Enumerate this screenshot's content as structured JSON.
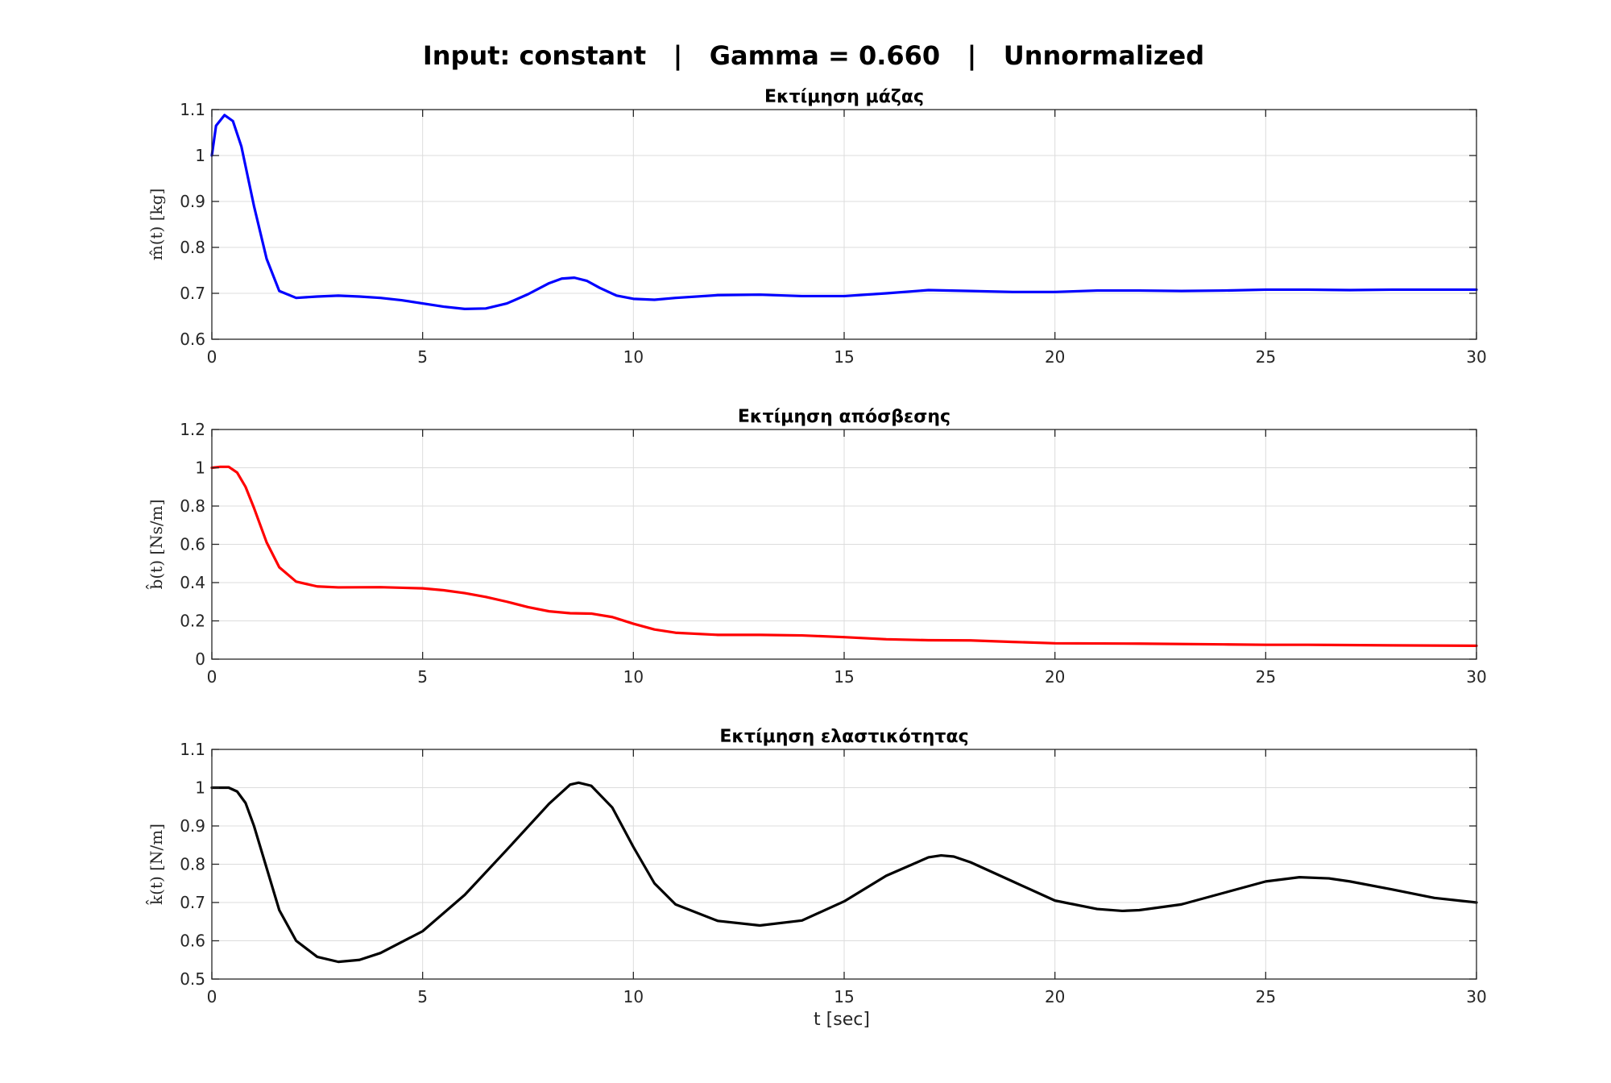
{
  "figure": {
    "suptitle": "Input: constant   |   Gamma = 0.660   |   Unnormalized",
    "xlabel": "t [sec]"
  },
  "chart_data": [
    {
      "type": "line",
      "title": "Εκτίμηση μάζας",
      "ylabel": "m̂(t)  [kg]",
      "xlim": [
        0,
        30
      ],
      "ylim": [
        0.6,
        1.1
      ],
      "xticks": [
        0,
        5,
        10,
        15,
        20,
        25,
        30
      ],
      "xtick_labels": [
        "0",
        "5",
        "10",
        "15",
        "20",
        "25",
        "30"
      ],
      "yticks": [
        0.6,
        0.7,
        0.8,
        0.9,
        1.0,
        1.1
      ],
      "ytick_labels": [
        "0.6",
        "0.7",
        "0.8",
        "0.9",
        "1",
        "1.1"
      ],
      "grid": true,
      "series": [
        {
          "color": "#0000ff",
          "x": [
            0,
            0.1,
            0.3,
            0.5,
            0.7,
            1.0,
            1.3,
            1.6,
            2.0,
            2.5,
            3.0,
            3.5,
            4.0,
            4.5,
            5.0,
            5.5,
            6.0,
            6.5,
            7.0,
            7.5,
            8.0,
            8.3,
            8.6,
            8.9,
            9.2,
            9.6,
            10.0,
            10.5,
            11.0,
            12.0,
            13.0,
            14.0,
            15.0,
            16.0,
            17.0,
            18.0,
            19.0,
            20.0,
            21.0,
            22.0,
            23.0,
            24.0,
            25.0,
            26.0,
            27.0,
            28.0,
            29.0,
            30.0
          ],
          "y": [
            1.0,
            1.065,
            1.088,
            1.075,
            1.02,
            0.89,
            0.775,
            0.705,
            0.69,
            0.693,
            0.695,
            0.693,
            0.69,
            0.685,
            0.678,
            0.671,
            0.666,
            0.667,
            0.678,
            0.698,
            0.722,
            0.732,
            0.734,
            0.727,
            0.712,
            0.695,
            0.688,
            0.686,
            0.69,
            0.696,
            0.697,
            0.694,
            0.694,
            0.7,
            0.707,
            0.705,
            0.703,
            0.703,
            0.706,
            0.706,
            0.705,
            0.706,
            0.708,
            0.708,
            0.707,
            0.708,
            0.708,
            0.708
          ]
        }
      ]
    },
    {
      "type": "line",
      "title": "Εκτίμηση απόσβεσης",
      "ylabel": "b̂(t)  [Ns/m]",
      "xlim": [
        0,
        30
      ],
      "ylim": [
        0,
        1.2
      ],
      "xticks": [
        0,
        5,
        10,
        15,
        20,
        25,
        30
      ],
      "xtick_labels": [
        "0",
        "5",
        "10",
        "15",
        "20",
        "25",
        "30"
      ],
      "yticks": [
        0,
        0.2,
        0.4,
        0.6,
        0.8,
        1.0,
        1.2
      ],
      "ytick_labels": [
        "0",
        "0.2",
        "0.4",
        "0.6",
        "0.8",
        "1",
        "1.2"
      ],
      "grid": true,
      "series": [
        {
          "color": "#ff0000",
          "x": [
            0,
            0.2,
            0.4,
            0.6,
            0.8,
            1.0,
            1.3,
            1.6,
            2.0,
            2.5,
            3.0,
            4.0,
            5.0,
            5.5,
            6.0,
            6.5,
            7.0,
            7.5,
            8.0,
            8.5,
            9.0,
            9.5,
            10.0,
            10.5,
            11.0,
            12.0,
            13.0,
            14.0,
            15.0,
            16.0,
            17.0,
            18.0,
            19.0,
            20.0,
            22.0,
            24.0,
            25.0,
            26.0,
            28.0,
            30.0
          ],
          "y": [
            1.0,
            1.005,
            1.005,
            0.975,
            0.9,
            0.79,
            0.61,
            0.48,
            0.405,
            0.38,
            0.375,
            0.376,
            0.37,
            0.36,
            0.345,
            0.325,
            0.3,
            0.272,
            0.25,
            0.24,
            0.238,
            0.22,
            0.185,
            0.155,
            0.138,
            0.127,
            0.127,
            0.124,
            0.115,
            0.104,
            0.099,
            0.098,
            0.09,
            0.083,
            0.081,
            0.077,
            0.075,
            0.075,
            0.072,
            0.07
          ]
        }
      ]
    },
    {
      "type": "line",
      "title": "Εκτίμηση ελαστικότητας",
      "ylabel": "k̂(t)  [N/m]",
      "xlim": [
        0,
        30
      ],
      "ylim": [
        0.5,
        1.1
      ],
      "xticks": [
        0,
        5,
        10,
        15,
        20,
        25,
        30
      ],
      "xtick_labels": [
        "0",
        "5",
        "10",
        "15",
        "20",
        "25",
        "30"
      ],
      "yticks": [
        0.5,
        0.6,
        0.7,
        0.8,
        0.9,
        1.0,
        1.1
      ],
      "ytick_labels": [
        "0.5",
        "0.6",
        "0.7",
        "0.8",
        "0.9",
        "1",
        "1.1"
      ],
      "grid": true,
      "series": [
        {
          "color": "#000000",
          "x": [
            0,
            0.2,
            0.4,
            0.6,
            0.8,
            1.0,
            1.3,
            1.6,
            2.0,
            2.5,
            3.0,
            3.5,
            4.0,
            5.0,
            6.0,
            7.0,
            8.0,
            8.5,
            8.7,
            9.0,
            9.5,
            10.0,
            10.5,
            11.0,
            12.0,
            13.0,
            14.0,
            15.0,
            16.0,
            17.0,
            17.3,
            17.6,
            18.0,
            19.0,
            20.0,
            21.0,
            21.6,
            22.0,
            23.0,
            24.0,
            25.0,
            25.8,
            26.5,
            27.0,
            28.0,
            29.0,
            30.0
          ],
          "y": [
            1.0,
            1.0,
            1.0,
            0.99,
            0.96,
            0.9,
            0.79,
            0.68,
            0.6,
            0.558,
            0.545,
            0.55,
            0.568,
            0.625,
            0.72,
            0.838,
            0.958,
            1.008,
            1.013,
            1.005,
            0.948,
            0.845,
            0.75,
            0.695,
            0.652,
            0.64,
            0.653,
            0.703,
            0.77,
            0.818,
            0.823,
            0.82,
            0.805,
            0.755,
            0.705,
            0.683,
            0.678,
            0.68,
            0.695,
            0.725,
            0.755,
            0.766,
            0.763,
            0.755,
            0.734,
            0.712,
            0.7
          ]
        }
      ]
    }
  ]
}
